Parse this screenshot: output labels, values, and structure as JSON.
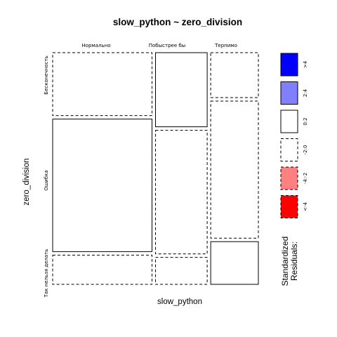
{
  "chart_data": {
    "type": "mosaic",
    "title": "slow_python ~ zero_division",
    "xlabel": "slow_python",
    "ylabel": "zero_division",
    "x_categories": [
      "Нормально",
      "Побыстрее бы",
      "Терпимо"
    ],
    "y_categories": [
      "Бесконечность",
      "Ошибка",
      "Так нельзя делать"
    ],
    "x_proportions": [
      0.5,
      0.26,
      0.24
    ],
    "cells": [
      {
        "x": "Нормально",
        "y": "Бесконечность",
        "proportion": 0.28,
        "residual_class": "-2:0"
      },
      {
        "x": "Нормально",
        "y": "Ошибка",
        "proportion": 0.59,
        "residual_class": "0:2"
      },
      {
        "x": "Нормально",
        "y": "Так нельзя делать",
        "proportion": 0.13,
        "residual_class": "-2:0"
      },
      {
        "x": "Побыстрее бы",
        "y": "Бесконечность",
        "proportion": 0.33,
        "residual_class": "0:2"
      },
      {
        "x": "Побыстрее бы",
        "y": "Ошибка",
        "proportion": 0.55,
        "residual_class": "-2:0"
      },
      {
        "x": "Побыстрее бы",
        "y": "Так нельзя делать",
        "proportion": 0.12,
        "residual_class": "-2:0"
      },
      {
        "x": "Терпимо",
        "y": "Бесконечность",
        "proportion": 0.2,
        "residual_class": "-2:0"
      },
      {
        "x": "Терпимо",
        "y": "Ошибка",
        "proportion": 0.61,
        "residual_class": "-2:0"
      },
      {
        "x": "Терпимо",
        "y": "Так нельзя делать",
        "proportion": 0.19,
        "residual_class": "0:2"
      }
    ],
    "legend": {
      "title_line1": "Standardized",
      "title_line2": "Residuals:",
      "items": [
        {
          "label": ">4",
          "fill": "#0000ff",
          "dashed": false
        },
        {
          "label": "2:4",
          "fill": "#8080ff",
          "dashed": false
        },
        {
          "label": "0:2",
          "fill": "#ffffff",
          "dashed": false
        },
        {
          "label": "-2:0",
          "fill": "#ffffff",
          "dashed": true
        },
        {
          "label": "-4:-2",
          "fill": "#ff8080",
          "dashed": true
        },
        {
          "label": "<-4",
          "fill": "#ff0000",
          "dashed": true
        }
      ]
    }
  }
}
